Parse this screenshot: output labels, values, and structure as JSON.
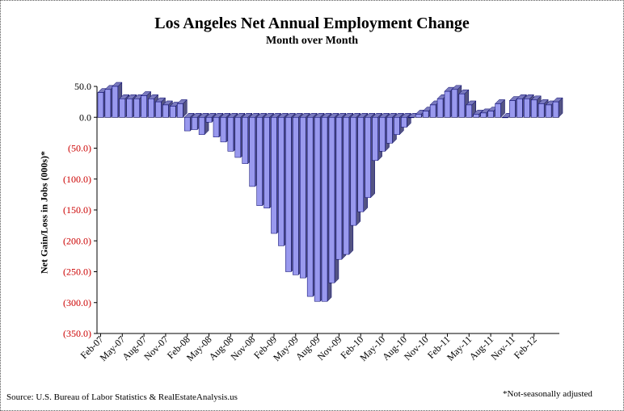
{
  "chart_data": {
    "type": "bar",
    "title": "Los Angeles Net Annual Employment Change",
    "subtitle": "Month over Month",
    "ylabel": "Net Gain/Loss in Jobs (000s)*",
    "xlabel": "",
    "ylim": [
      -350,
      50
    ],
    "y_ticks": [
      {
        "value": 50,
        "label": "50.0"
      },
      {
        "value": 0,
        "label": "0.0"
      },
      {
        "value": -50,
        "label": "(50.0)"
      },
      {
        "value": -100,
        "label": "(100.0)"
      },
      {
        "value": -150,
        "label": "(150.0)"
      },
      {
        "value": -200,
        "label": "(200.0)"
      },
      {
        "value": -250,
        "label": "(250.0)"
      },
      {
        "value": -300,
        "label": "(300.0)"
      },
      {
        "value": -350,
        "label": "(350.0)"
      }
    ],
    "x_tick_labels": [
      {
        "index": 0,
        "label": "Feb-07"
      },
      {
        "index": 3,
        "label": "May-07"
      },
      {
        "index": 6,
        "label": "Aug-07"
      },
      {
        "index": 9,
        "label": "Nov-07"
      },
      {
        "index": 12,
        "label": "Feb-08"
      },
      {
        "index": 15,
        "label": "May-08"
      },
      {
        "index": 18,
        "label": "Aug-08"
      },
      {
        "index": 21,
        "label": "Nov-08"
      },
      {
        "index": 24,
        "label": "Feb-09"
      },
      {
        "index": 27,
        "label": "May-09"
      },
      {
        "index": 30,
        "label": "Aug-09"
      },
      {
        "index": 33,
        "label": "Nov-09"
      },
      {
        "index": 36,
        "label": "Feb-10"
      },
      {
        "index": 39,
        "label": "May-10"
      },
      {
        "index": 42,
        "label": "Aug-10"
      },
      {
        "index": 45,
        "label": "Nov-10"
      },
      {
        "index": 48,
        "label": "Feb-11"
      },
      {
        "index": 51,
        "label": "May-11"
      },
      {
        "index": 54,
        "label": "Aug-11"
      },
      {
        "index": 57,
        "label": "Nov-11"
      },
      {
        "index": 60,
        "label": "Feb-12"
      }
    ],
    "values": [
      40,
      45,
      50,
      30,
      30,
      30,
      35,
      30,
      25,
      20,
      18,
      22,
      -22,
      -20,
      -28,
      -8,
      -32,
      -40,
      -55,
      -65,
      -75,
      -112,
      -143,
      -147,
      -188,
      -208,
      -250,
      -255,
      -260,
      -290,
      -298,
      -298,
      -268,
      -230,
      -222,
      -175,
      -153,
      -130,
      -70,
      -55,
      -42,
      -28,
      -16,
      0,
      5,
      10,
      20,
      30,
      42,
      45,
      38,
      20,
      5,
      7,
      10,
      22,
      0,
      27,
      30,
      30,
      28,
      22,
      20,
      25
    ],
    "bar_color": "#9999ee",
    "bar_edge_color": "#000066",
    "positive_tick_color": "#000000",
    "negative_tick_color": "#cc0000",
    "grid": false,
    "legend": "none"
  },
  "source": "Source: U.S. Bureau of Labor Statistics & RealEstateAnalysis.us",
  "footnote": "*Not-seasonally adjusted"
}
